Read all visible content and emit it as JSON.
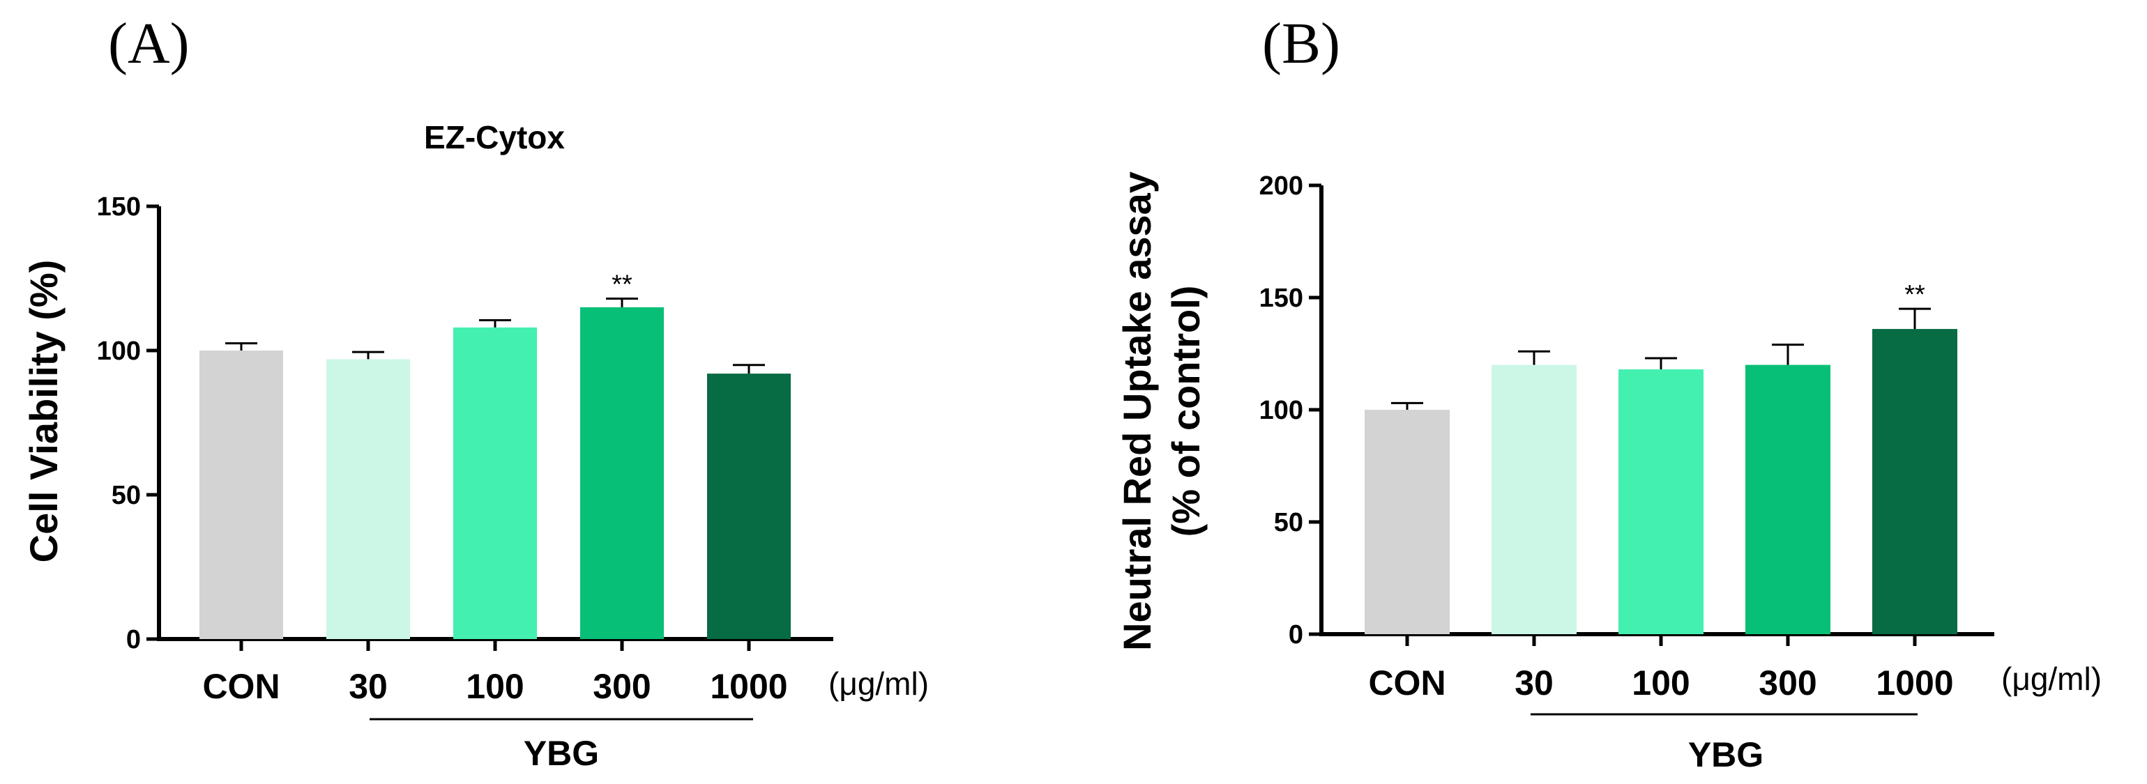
{
  "figure": {
    "panel_a_label": "(A)",
    "panel_b_label": "(B)"
  },
  "colors": {
    "CON": "#d3d3d3",
    "30": "#ccf7e6",
    "100": "#44f0b0",
    "300": "#07bf76",
    "1000": "#076b43",
    "axis": "#000000"
  },
  "chart_data": [
    {
      "type": "bar",
      "panel": "A",
      "title": "EZ-Cytox",
      "ylabel": "Cell Viability (%)",
      "xlabel": "",
      "unit_label": "(μg/ml)",
      "group_label": "YBG",
      "categories": [
        "CON",
        "30",
        "100",
        "300",
        "1000"
      ],
      "values": [
        100,
        97,
        108,
        115,
        92
      ],
      "errors": [
        2.5,
        2.5,
        2.5,
        3,
        3
      ],
      "significance": [
        "",
        "",
        "",
        "**",
        ""
      ],
      "yticks": [
        0,
        50,
        100,
        150
      ],
      "ylim": [
        0,
        150
      ]
    },
    {
      "type": "bar",
      "panel": "B",
      "title": "",
      "ylabel": "Neutral Red Uptake assay",
      "ylabel2": "(% of control)",
      "xlabel": "",
      "unit_label": "(μg/ml)",
      "group_label": "YBG",
      "categories": [
        "CON",
        "30",
        "100",
        "300",
        "1000"
      ],
      "values": [
        100,
        120,
        118,
        120,
        136
      ],
      "errors": [
        3,
        6,
        5,
        9,
        9
      ],
      "significance": [
        "",
        "",
        "",
        "",
        "**"
      ],
      "yticks": [
        0,
        50,
        100,
        150,
        200
      ],
      "ylim": [
        0,
        200
      ]
    }
  ]
}
